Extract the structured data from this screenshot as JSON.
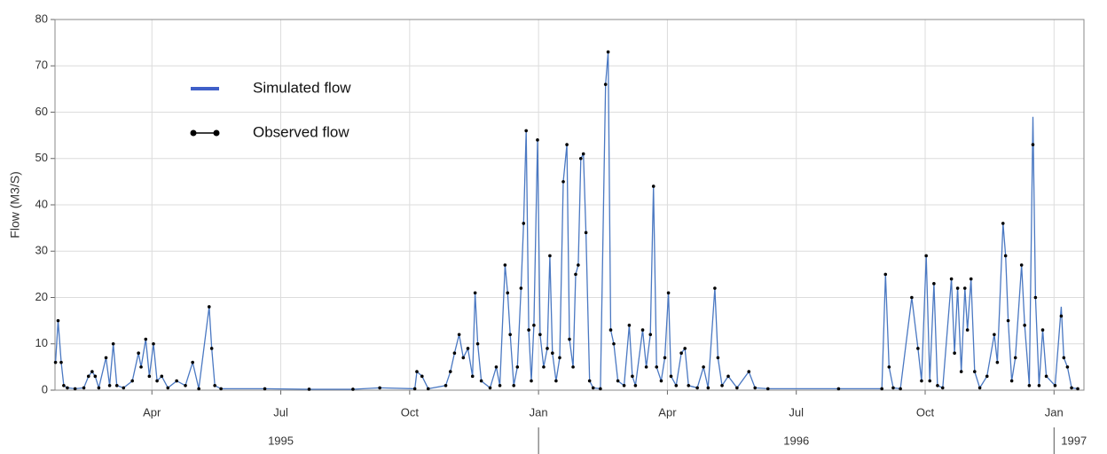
{
  "chart_data": {
    "type": "line",
    "y_label": "Flow (M3/S)",
    "xlim": [
      1995.062,
      1997.058
    ],
    "xticks": [
      {
        "value": 1995.25,
        "label": "Apr"
      },
      {
        "value": 1995.5,
        "label": "Jul"
      },
      {
        "value": 1995.75,
        "label": "Oct"
      },
      {
        "value": 1996.0,
        "label": "Jan"
      },
      {
        "value": 1996.25,
        "label": "Apr"
      },
      {
        "value": 1996.5,
        "label": "Jul"
      },
      {
        "value": 1996.75,
        "label": "Oct"
      },
      {
        "value": 1997.0,
        "label": "Jan"
      }
    ],
    "year_labels": [
      {
        "value": 1995.5,
        "label": "1995"
      },
      {
        "value": 1996.5,
        "label": "1996"
      },
      1997
    ],
    "year_dividers": [
      1996,
      1997
    ],
    "ylim": [
      0,
      80
    ],
    "yticks": [
      0,
      10,
      20,
      30,
      40,
      50,
      60,
      70,
      80
    ],
    "grid": true,
    "legend": "upper left",
    "x": [
      1995.063,
      1995.068,
      1995.074,
      1995.079,
      1995.086,
      1995.101,
      1995.118,
      1995.127,
      1995.134,
      1995.14,
      1995.147,
      1995.161,
      1995.168,
      1995.175,
      1995.182,
      1995.195,
      1995.212,
      1995.224,
      1995.229,
      1995.238,
      1995.245,
      1995.253,
      1995.26,
      1995.269,
      1995.281,
      1995.298,
      1995.315,
      1995.329,
      1995.341,
      1995.361,
      1995.366,
      1995.372,
      1995.384,
      1995.469,
      1995.555,
      1995.64,
      1995.692,
      1995.76,
      1995.764,
      1995.774,
      1995.786,
      1995.82,
      1995.829,
      1995.837,
      1995.846,
      1995.854,
      1995.863,
      1995.872,
      1995.877,
      1995.882,
      1995.889,
      1995.906,
      1995.918,
      1995.925,
      1995.935,
      1995.94,
      1995.945,
      1995.952,
      1995.959,
      1995.966,
      1995.971,
      1995.976,
      1995.981,
      1995.986,
      1995.991,
      1995.998,
      1996.003,
      1996.01,
      1996.017,
      1996.022,
      1996.027,
      1996.034,
      1996.041,
      1996.048,
      1996.055,
      1996.06,
      1996.067,
      1996.072,
      1996.077,
      1996.082,
      1996.087,
      1996.092,
      1996.099,
      1996.106,
      1996.12,
      1996.13,
      1996.135,
      1996.14,
      1996.146,
      1996.154,
      1996.166,
      1996.176,
      1996.182,
      1996.188,
      1996.202,
      1996.209,
      1996.217,
      1996.223,
      1996.229,
      1996.238,
      1996.245,
      1996.252,
      1996.257,
      1996.267,
      1996.277,
      1996.284,
      1996.291,
      1996.308,
      1996.32,
      1996.329,
      1996.342,
      1996.348,
      1996.356,
      1996.368,
      1996.385,
      1996.408,
      1996.42,
      1996.445,
      1996.582,
      1996.666,
      1996.673,
      1996.68,
      1996.688,
      1996.702,
      1996.724,
      1996.736,
      1996.743,
      1996.752,
      1996.759,
      1996.767,
      1996.774,
      1996.784,
      1996.801,
      1996.807,
      1996.813,
      1996.82,
      1996.827,
      1996.832,
      1996.839,
      1996.846,
      1996.856,
      1996.87,
      1996.884,
      1996.89,
      1996.901,
      1996.906,
      1996.911,
      1996.918,
      1996.925,
      1996.937,
      1996.943,
      1996.952,
      1996.959,
      1996.964,
      1996.971,
      1996.978,
      1996.985,
      1997.002,
      1997.014,
      1997.019,
      1997.026,
      1997.034,
      1997.046
    ],
    "series": [
      {
        "name": "Simulated flow",
        "color": "#4a78c2",
        "style": "line",
        "values": [
          6,
          15,
          6,
          1,
          0.5,
          0.3,
          0.5,
          3,
          4,
          3,
          0.5,
          7,
          1,
          10,
          1,
          0.5,
          2,
          8,
          5,
          11,
          3,
          10,
          2,
          3,
          0.5,
          2,
          1,
          6,
          0.3,
          18,
          9,
          1,
          0.3,
          0.3,
          0.2,
          0.2,
          0.5,
          0.3,
          4,
          3,
          0.3,
          1,
          4,
          8,
          12,
          7,
          9,
          3,
          21,
          10,
          2,
          0.5,
          5,
          1,
          27,
          21,
          12,
          1,
          5,
          22,
          36,
          56,
          13,
          2,
          14,
          54,
          12,
          5,
          9,
          29,
          8,
          2,
          7,
          45,
          53,
          11,
          5,
          25,
          27,
          50,
          51,
          34,
          2,
          0.5,
          0.3,
          66,
          73,
          13,
          10,
          2,
          1,
          14,
          3,
          1,
          13,
          5,
          12,
          44,
          5,
          2,
          7,
          21,
          3,
          1,
          8,
          9,
          1,
          0.5,
          5,
          0.5,
          22,
          7,
          1,
          3,
          0.5,
          4,
          0.5,
          0.3,
          0.3,
          0.3,
          25,
          5,
          0.5,
          0.3,
          20,
          9,
          2,
          29,
          2,
          23,
          1,
          0.5,
          24,
          8,
          22,
          4,
          22,
          13,
          24,
          4,
          0.5,
          3,
          12,
          6,
          36,
          29,
          15,
          2,
          7,
          27,
          14,
          1,
          59,
          20,
          1,
          13,
          3,
          1,
          18,
          7,
          5,
          0.5,
          0.3
        ]
      },
      {
        "name": "Observed flow",
        "color": "#000000",
        "style": "markers",
        "values": [
          6,
          15,
          6,
          1,
          0.5,
          0.3,
          0.5,
          3,
          4,
          3,
          0.5,
          7,
          1,
          10,
          1,
          0.5,
          2,
          8,
          5,
          11,
          3,
          10,
          2,
          3,
          0.5,
          2,
          1,
          6,
          0.3,
          18,
          9,
          1,
          0.3,
          0.3,
          0.2,
          0.2,
          0.5,
          0.3,
          4,
          3,
          0.3,
          1,
          4,
          8,
          12,
          7,
          9,
          3,
          21,
          10,
          2,
          0.5,
          5,
          1,
          27,
          21,
          12,
          1,
          5,
          22,
          36,
          56,
          13,
          2,
          14,
          54,
          12,
          5,
          9,
          29,
          8,
          2,
          7,
          45,
          53,
          11,
          5,
          25,
          27,
          50,
          51,
          34,
          2,
          0.5,
          0.3,
          66,
          73,
          13,
          10,
          2,
          1,
          14,
          3,
          1,
          13,
          5,
          12,
          44,
          5,
          2,
          7,
          21,
          3,
          1,
          8,
          9,
          1,
          0.5,
          5,
          0.5,
          22,
          7,
          1,
          3,
          0.5,
          4,
          0.5,
          0.3,
          0.3,
          0.3,
          25,
          5,
          0.5,
          0.3,
          20,
          9,
          2,
          29,
          2,
          23,
          1,
          0.5,
          24,
          8,
          22,
          4,
          22,
          13,
          24,
          4,
          0.5,
          3,
          12,
          6,
          36,
          29,
          15,
          2,
          7,
          27,
          14,
          1,
          53,
          20,
          1,
          13,
          3,
          1,
          16,
          7,
          5,
          0.5,
          0.3
        ]
      }
    ]
  }
}
